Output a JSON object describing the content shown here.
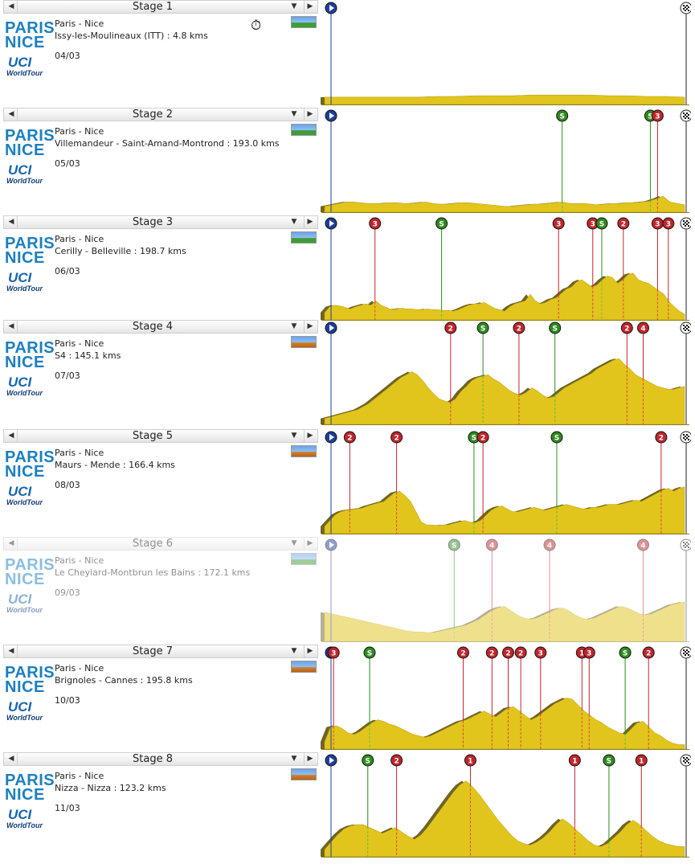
{
  "stages": [
    {
      "header": "Stage 1",
      "race_name": "Paris - Nice",
      "route": "Issy-les-Moulineaux (ITT) : 4.8 kms",
      "date": "04/03",
      "terrain": "plain",
      "itt": true,
      "logo_text": [
        "PARIS",
        "NICE"
      ],
      "uci_text": [
        "UCI",
        "WorldTour"
      ],
      "profile": [
        10,
        10,
        10,
        10,
        10,
        10,
        11,
        11,
        12,
        12,
        12,
        13,
        13,
        13,
        13,
        12,
        12,
        11,
        11,
        10
      ],
      "markers": [
        {
          "type": "start",
          "pos": 0,
          "label": ""
        },
        {
          "type": "finish",
          "pos": 1,
          "label": ""
        }
      ]
    },
    {
      "header": "Stage 2",
      "race_name": "Paris - Nice",
      "route": "Villemandeur - Saint-Amand-Montrond : 193.0 kms",
      "date": "05/03",
      "terrain": "plain",
      "itt": false,
      "logo_text": [
        "PARIS",
        "NICE"
      ],
      "uci_text": [
        "UCI",
        "WorldTour"
      ],
      "profile": [
        8,
        10,
        12,
        14,
        14,
        13,
        12,
        12,
        12,
        13,
        13,
        12,
        12,
        13,
        14,
        12,
        11,
        11,
        12,
        13,
        13,
        12,
        11,
        10,
        9,
        8,
        8,
        9,
        10,
        11,
        11,
        12,
        13,
        14,
        12,
        12,
        12,
        11,
        10,
        11,
        12,
        12,
        13,
        13,
        14,
        15,
        18,
        22,
        14,
        12,
        10
      ],
      "markers": [
        {
          "type": "start",
          "pos": 0,
          "label": ""
        },
        {
          "type": "sprint",
          "pos": 0.66,
          "label": "S"
        },
        {
          "type": "sprint",
          "pos": 0.905,
          "label": "S"
        },
        {
          "type": "climb",
          "pos": 0.925,
          "label": "3"
        },
        {
          "type": "finish",
          "pos": 1,
          "label": ""
        }
      ]
    },
    {
      "header": "Stage 3",
      "race_name": "Paris - Nice",
      "route": "Cerilly - Belleville : 198.7 kms",
      "date": "06/03",
      "terrain": "plain",
      "itt": false,
      "logo_text": [
        "PARIS",
        "NICE"
      ],
      "uci_text": [
        "UCI",
        "WorldTour"
      ],
      "profile": [
        10,
        18,
        20,
        19,
        17,
        15,
        18,
        20,
        22,
        20,
        26,
        20,
        17,
        14,
        15,
        16,
        15,
        15,
        14,
        14,
        15,
        14,
        14,
        13,
        13,
        12,
        14,
        17,
        20,
        22,
        22,
        24,
        20,
        16,
        14,
        12,
        18,
        22,
        24,
        26,
        35,
        26,
        22,
        24,
        28,
        30,
        36,
        42,
        45,
        52,
        55,
        50,
        45,
        48,
        55,
        60,
        58,
        50,
        55,
        62,
        64,
        55,
        52,
        50,
        45,
        40,
        35,
        25,
        18,
        12,
        8
      ],
      "markers": [
        {
          "type": "start",
          "pos": 0,
          "label": ""
        },
        {
          "type": "climb",
          "pos": 0.14,
          "label": "3"
        },
        {
          "type": "sprint",
          "pos": 0.325,
          "label": "S"
        },
        {
          "type": "climb",
          "pos": 0.65,
          "label": "3"
        },
        {
          "type": "climb",
          "pos": 0.745,
          "label": "3"
        },
        {
          "type": "sprint",
          "pos": 0.77,
          "label": "S"
        },
        {
          "type": "climb",
          "pos": 0.83,
          "label": "2"
        },
        {
          "type": "climb",
          "pos": 0.925,
          "label": "3"
        },
        {
          "type": "climb",
          "pos": 0.955,
          "label": "3"
        },
        {
          "type": "finish",
          "pos": 1,
          "label": ""
        }
      ]
    },
    {
      "header": "Stage 4",
      "race_name": "Paris - Nice",
      "route": "S4 : 145.1 kms",
      "date": "07/03",
      "terrain": "hilly",
      "itt": false,
      "logo_text": [
        "PARIS",
        "NICE"
      ],
      "uci_text": [
        "UCI",
        "WorldTour"
      ],
      "profile": [
        8,
        10,
        12,
        14,
        16,
        18,
        20,
        24,
        28,
        34,
        40,
        46,
        52,
        58,
        64,
        68,
        72,
        68,
        60,
        50,
        42,
        35,
        32,
        30,
        35,
        45,
        52,
        60,
        64,
        66,
        68,
        62,
        58,
        52,
        46,
        42,
        40,
        44,
        50,
        46,
        40,
        36,
        38,
        44,
        50,
        54,
        58,
        62,
        66,
        70,
        76,
        80,
        84,
        88,
        90,
        82,
        76,
        68,
        64,
        60,
        56,
        52,
        50,
        48,
        48,
        50,
        52
      ],
      "markers": [
        {
          "type": "start",
          "pos": 0,
          "label": ""
        },
        {
          "type": "climb",
          "pos": 0.35,
          "label": "2"
        },
        {
          "type": "sprint",
          "pos": 0.44,
          "label": "S"
        },
        {
          "type": "climb",
          "pos": 0.54,
          "label": "2"
        },
        {
          "type": "sprint",
          "pos": 0.64,
          "label": "S"
        },
        {
          "type": "climb",
          "pos": 0.84,
          "label": "2"
        },
        {
          "type": "climb",
          "pos": 0.885,
          "label": "4"
        },
        {
          "type": "finish",
          "pos": 1,
          "label": ""
        }
      ]
    },
    {
      "header": "Stage 5",
      "race_name": "Paris - Nice",
      "route": "Maurs - Mende : 166.4 kms",
      "date": "08/03",
      "terrain": "hilly",
      "itt": false,
      "logo_text": [
        "PARIS",
        "NICE"
      ],
      "uci_text": [
        "UCI",
        "WorldTour"
      ],
      "profile": [
        10,
        18,
        26,
        30,
        32,
        33,
        34,
        35,
        38,
        40,
        42,
        44,
        50,
        56,
        58,
        52,
        44,
        30,
        16,
        12,
        12,
        11,
        12,
        12,
        14,
        16,
        18,
        16,
        15,
        18,
        25,
        32,
        36,
        38,
        34,
        30,
        30,
        32,
        34,
        36,
        34,
        32,
        34,
        36,
        38,
        40,
        38,
        36,
        34,
        34,
        36,
        36,
        38,
        40,
        40,
        40,
        42,
        44,
        46,
        44,
        48,
        52,
        56,
        60,
        62,
        58,
        62,
        64
      ],
      "markers": [
        {
          "type": "start",
          "pos": 0,
          "label": ""
        },
        {
          "type": "climb",
          "pos": 0.07,
          "label": "2"
        },
        {
          "type": "climb",
          "pos": 0.2,
          "label": "2"
        },
        {
          "type": "sprint",
          "pos": 0.415,
          "label": "S"
        },
        {
          "type": "climb",
          "pos": 0.44,
          "label": "2"
        },
        {
          "type": "sprint",
          "pos": 0.645,
          "label": "S"
        },
        {
          "type": "climb",
          "pos": 0.935,
          "label": "2"
        },
        {
          "type": "finish",
          "pos": 1,
          "label": ""
        }
      ]
    },
    {
      "header": "Stage 6",
      "race_name": "Paris - Nice",
      "route": "Le Cheylard-Montbrun les Bains : 172.1 kms",
      "date": "09/03",
      "terrain": "plain",
      "itt": false,
      "faded": true,
      "logo_text": [
        "PARIS",
        "NICE"
      ],
      "uci_text": [
        "UCI",
        "WorldTour"
      ],
      "profile": [
        40,
        38,
        36,
        34,
        32,
        30,
        28,
        26,
        24,
        22,
        20,
        18,
        16,
        14,
        13,
        13,
        12,
        12,
        14,
        16,
        18,
        20,
        22,
        26,
        30,
        36,
        42,
        46,
        48,
        42,
        36,
        32,
        30,
        32,
        36,
        40,
        44,
        46,
        42,
        36,
        32,
        30,
        32,
        36,
        40,
        44,
        48,
        46,
        42,
        38,
        36,
        38,
        42,
        46,
        50,
        52,
        54
      ],
      "markers": [
        {
          "type": "start",
          "pos": 0,
          "label": ""
        },
        {
          "type": "sprint",
          "pos": 0.36,
          "label": "S"
        },
        {
          "type": "climb",
          "pos": 0.465,
          "label": "4"
        },
        {
          "type": "climb",
          "pos": 0.625,
          "label": "4"
        },
        {
          "type": "climb",
          "pos": 0.885,
          "label": "4"
        },
        {
          "type": "finish",
          "pos": 1,
          "label": ""
        }
      ]
    },
    {
      "header": "Stage 7",
      "race_name": "Paris - Nice",
      "route": "Brignoles - Cannes : 195.8 kms",
      "date": "10/03",
      "terrain": "hilly",
      "itt": false,
      "logo_text": [
        "PARIS",
        "NICE"
      ],
      "uci_text": [
        "UCI",
        "WorldTour"
      ],
      "profile": [
        10,
        30,
        32,
        28,
        22,
        20,
        24,
        30,
        36,
        40,
        38,
        34,
        32,
        28,
        24,
        20,
        18,
        16,
        18,
        22,
        26,
        30,
        34,
        38,
        40,
        44,
        48,
        52,
        48,
        44,
        50,
        56,
        58,
        52,
        46,
        40,
        44,
        50,
        56,
        62,
        66,
        70,
        68,
        60,
        52,
        46,
        40,
        36,
        30,
        26,
        22,
        20,
        28,
        36,
        38,
        30,
        22,
        18,
        12,
        8,
        6,
        6
      ],
      "markers": [
        {
          "type": "start",
          "pos": 0,
          "label": ""
        },
        {
          "type": "climb",
          "pos": 0.025,
          "label": "3"
        },
        {
          "type": "sprint",
          "pos": 0.125,
          "label": "S"
        },
        {
          "type": "climb",
          "pos": 0.385,
          "label": "2"
        },
        {
          "type": "climb",
          "pos": 0.465,
          "label": "2"
        },
        {
          "type": "climb",
          "pos": 0.51,
          "label": "2"
        },
        {
          "type": "climb",
          "pos": 0.545,
          "label": "2"
        },
        {
          "type": "climb",
          "pos": 0.6,
          "label": "3"
        },
        {
          "type": "climb",
          "pos": 0.715,
          "label": "1"
        },
        {
          "type": "climb",
          "pos": 0.735,
          "label": "3"
        },
        {
          "type": "sprint",
          "pos": 0.835,
          "label": "S"
        },
        {
          "type": "climb",
          "pos": 0.9,
          "label": "2"
        },
        {
          "type": "finish",
          "pos": 1,
          "label": ""
        }
      ]
    },
    {
      "header": "Stage 8",
      "race_name": "Paris - Nice",
      "route": "Nizza - Nizza : 123.2 kms",
      "date": "11/03",
      "terrain": "hilly",
      "itt": false,
      "logo_text": [
        "PARIS",
        "NICE"
      ],
      "uci_text": [
        "UCI",
        "WorldTour"
      ],
      "profile": [
        10,
        20,
        30,
        38,
        42,
        44,
        44,
        40,
        36,
        32,
        36,
        40,
        34,
        28,
        24,
        30,
        40,
        52,
        64,
        76,
        88,
        98,
        104,
        96,
        86,
        74,
        62,
        50,
        40,
        30,
        22,
        18,
        16,
        20,
        26,
        34,
        44,
        52,
        46,
        38,
        30,
        22,
        16,
        14,
        18,
        26,
        34,
        44,
        50,
        44,
        36,
        28,
        22,
        18,
        16,
        14,
        14
      ],
      "markers": [
        {
          "type": "start",
          "pos": 0,
          "label": ""
        },
        {
          "type": "sprint",
          "pos": 0.12,
          "label": "S"
        },
        {
          "type": "climb",
          "pos": 0.2,
          "label": "2"
        },
        {
          "type": "climb",
          "pos": 0.405,
          "label": "1"
        },
        {
          "type": "climb",
          "pos": 0.695,
          "label": "1"
        },
        {
          "type": "sprint",
          "pos": 0.79,
          "label": "S"
        },
        {
          "type": "climb",
          "pos": 0.88,
          "label": "1"
        },
        {
          "type": "finish",
          "pos": 1,
          "label": ""
        }
      ]
    }
  ]
}
